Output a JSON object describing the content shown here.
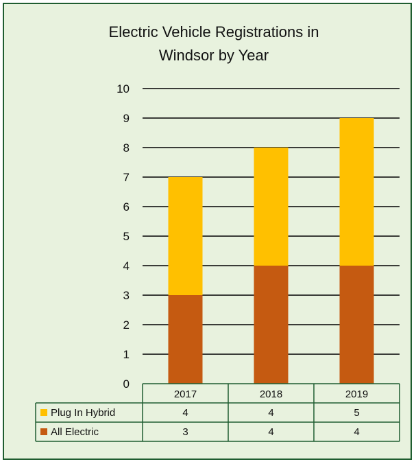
{
  "colors": {
    "background": "#e8f2de",
    "border": "#1f5d30",
    "plug_in_hybrid": "#ffc000",
    "all_electric": "#c55a11"
  },
  "chart_data": {
    "type": "bar",
    "stacked": true,
    "title_lines": [
      "Electric Vehicle Registrations in",
      "Windsor by Year"
    ],
    "categories": [
      "2017",
      "2018",
      "2019"
    ],
    "series": [
      {
        "name": "All Electric",
        "values": [
          3,
          4,
          4
        ],
        "color": "#c55a11"
      },
      {
        "name": "Plug In Hybrid",
        "values": [
          4,
          4,
          5
        ],
        "color": "#ffc000"
      }
    ],
    "ylim": [
      0,
      10
    ],
    "yticks": [
      0,
      1,
      2,
      3,
      4,
      5,
      6,
      7,
      8,
      9,
      10
    ],
    "grid": true,
    "legend": "data-table",
    "data_table_rows": [
      "Plug In Hybrid",
      "All Electric"
    ]
  }
}
